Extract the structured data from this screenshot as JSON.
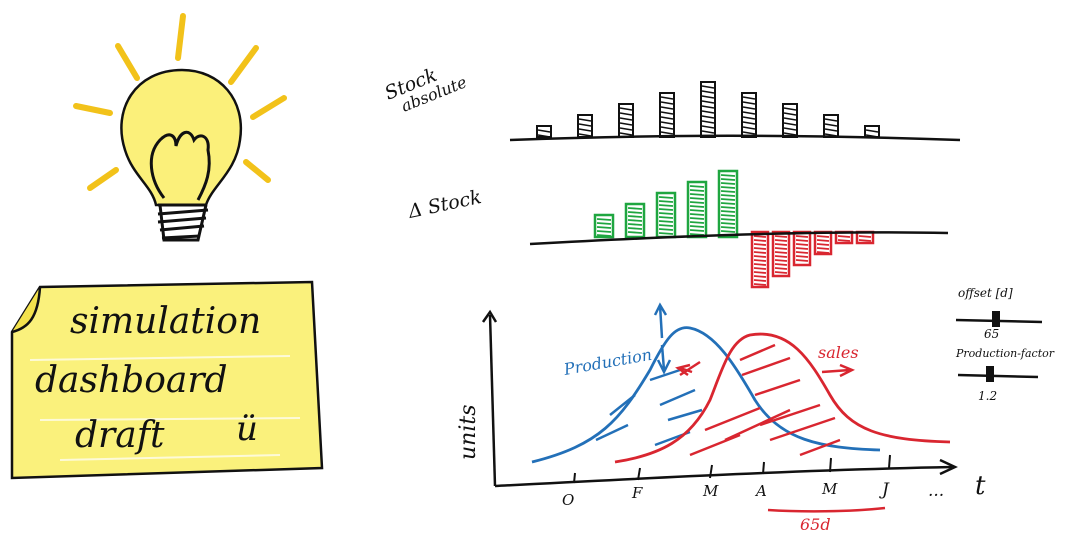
{
  "note": {
    "lines": [
      "simulation",
      "dashboard",
      "draft"
    ],
    "smiley": "ü"
  },
  "stock_absolute": {
    "label_line1": "Stock",
    "label_line2": "absolute",
    "values": [
      1,
      2,
      3,
      4,
      5,
      4,
      3,
      2,
      1
    ]
  },
  "delta_stock": {
    "label": "Δ Stock",
    "positive": [
      2,
      3,
      4,
      5,
      6
    ],
    "negative": [
      5,
      4,
      3,
      2,
      1,
      1
    ],
    "positive_color": "#1fa640",
    "negative_color": "#d92630"
  },
  "chart": {
    "ylabel": "units",
    "xlabel": "t",
    "ticks": [
      "O",
      "F",
      "M",
      "A",
      "M",
      "J",
      "..."
    ],
    "production_label": "Production",
    "sales_label": "sales",
    "production_color": "#2370b8",
    "sales_color": "#d92630",
    "shift_label": "65d"
  },
  "controls": {
    "offset_label": "offset [d]",
    "offset_value": "65",
    "factor_label": "Production-factor",
    "factor_value": "1.2"
  },
  "colors": {
    "ink": "#111111",
    "bulb_fill": "#fbf07a",
    "note_fill": "#faf17c",
    "ray": "#f2c21a"
  }
}
